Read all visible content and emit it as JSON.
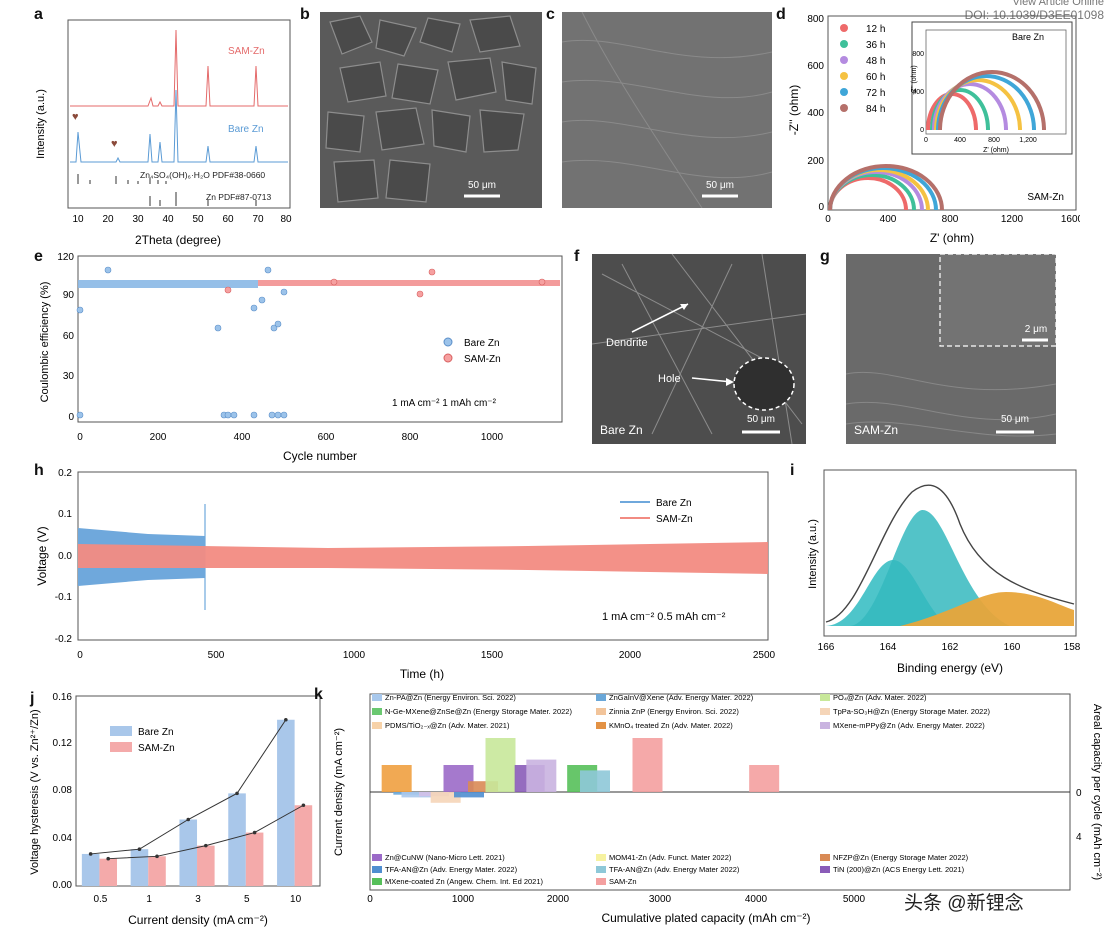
{
  "header": {
    "line1": "View Article Online",
    "line2": "DOI: 10.1039/D3EE01098"
  },
  "watermark": "头条 @新锂念",
  "panels": {
    "a": {
      "label": "a",
      "ylabel": "Intensity (a.u.)",
      "xlabel": "2Theta (degree)",
      "xticks": [
        "10",
        "20",
        "30",
        "40",
        "50",
        "60",
        "70",
        "80"
      ],
      "legend_sam": "SAM-Zn",
      "legend_bare": "Bare Zn",
      "ref1": "Zn₄SO₄(OH)₆·H₂O PDF#38-0660",
      "ref2": "Zn PDF#87-0713",
      "colors": {
        "sam": "#e46a6a",
        "bare": "#5b9bd5",
        "marker": "#8b4a3a"
      }
    },
    "b": {
      "label": "b",
      "scale": "50 μm"
    },
    "c": {
      "label": "c",
      "scale": "50 μm"
    },
    "d": {
      "label": "d",
      "ylabel": "-Z'' (ohm)",
      "xlabel": "Z' (ohm)",
      "xticks": [
        "0",
        "400",
        "800",
        "1200",
        "1600"
      ],
      "yticks": [
        "0",
        "200",
        "400",
        "600",
        "800"
      ],
      "legend": [
        "12 h",
        "36 h",
        "48 h",
        "60 h",
        "72 h",
        "84 h"
      ],
      "colors": [
        "#ee6a6a",
        "#3fc09a",
        "#b48be0",
        "#f5c242",
        "#3fa6d8",
        "#b5706a"
      ],
      "inset_label": "Bare Zn",
      "inset_xlabel": "Z' (ohm)",
      "inset_ylabel": "-Z'' (ohm)",
      "inset_xticks": [
        "0",
        "400",
        "800",
        "1,200"
      ],
      "inset_yticks": [
        "0",
        "400",
        "800"
      ],
      "main_label": "SAM-Zn"
    },
    "e": {
      "label": "e",
      "ylabel": "Coulombic efficiency (%)",
      "xlabel": "Cycle number",
      "xticks": [
        "0",
        "200",
        "400",
        "600",
        "800",
        "1000"
      ],
      "yticks": [
        "0",
        "30",
        "60",
        "90",
        "120"
      ],
      "legend": [
        "Bare Zn",
        "SAM-Zn"
      ],
      "colors": [
        "#7fb2e0",
        "#f08080"
      ],
      "condition": "1 mA cm⁻² 1 mAh cm⁻²"
    },
    "f": {
      "label": "f",
      "dendrite": "Dendrite",
      "hole": "Hole",
      "scale": "50 μm",
      "name": "Bare Zn"
    },
    "g": {
      "label": "g",
      "inset_scale": "2 μm",
      "scale": "50 μm",
      "name": "SAM-Zn"
    },
    "h": {
      "label": "h",
      "ylabel": "Voltage (V)",
      "xlabel": "Time (h)",
      "xticks": [
        "0",
        "500",
        "1000",
        "1500",
        "2000",
        "2500"
      ],
      "yticks": [
        "-0.2",
        "-0.1",
        "0.0",
        "0.1",
        "0.2"
      ],
      "legend": [
        "Bare Zn",
        "SAM-Zn"
      ],
      "colors": [
        "#6fa8dc",
        "#f28b82"
      ],
      "condition": "1 mA cm⁻² 0.5 mAh cm⁻²"
    },
    "i": {
      "label": "i",
      "ylabel": "Intensity (a.u.)",
      "xlabel": "Binding energy (eV)",
      "xticks": [
        "166",
        "164",
        "162",
        "160",
        "158"
      ],
      "colors": {
        "peak1": "#3bbfc4",
        "peak2": "#35b8be",
        "peak3": "#e8a53a",
        "envelope": "#444444"
      }
    },
    "j": {
      "label": "j",
      "ylabel": "Voltage hysteresis (V vs. Zn²⁺/Zn)",
      "xlabel": "Current density (mA cm⁻²)",
      "legend": [
        "Bare Zn",
        "SAM-Zn"
      ],
      "colors": [
        "#a9c7ea",
        "#f4aaaa"
      ],
      "yticks": [
        "0.00",
        "0.04",
        "0.08",
        "0.12",
        "0.16"
      ]
    },
    "k": {
      "label": "k",
      "ylabel": "Current density (mA cm⁻²)",
      "ylabel_right": "Areal capacity per cycle (mAh cm⁻²)",
      "xlabel": "Cumulative plated capacity (mAh cm⁻²)",
      "xticks": [
        "0",
        "1000",
        "2000",
        "3000",
        "4000",
        "5000"
      ],
      "right_ticks": [
        "0",
        "4"
      ],
      "legend_top": [
        {
          "text": "Zn-PA@Zn (Energy Environ. Sci. 2022)",
          "color": "#a8c8ec"
        },
        {
          "text": "ZnGaInV@Xene (Adv. Energy Mater. 2022)",
          "color": "#6aa7d8"
        },
        {
          "text": "PO₄@Zn (Adv. Mater. 2022)",
          "color": "#c8e89a"
        },
        {
          "text": "N-Ge-MXene@ZnSe@Zn (Energy Storage Mater. 2022)",
          "color": "#6ac870"
        },
        {
          "text": "Zinnia ZnP (Energy Environ. Sci. 2022)",
          "color": "#f2c49a"
        },
        {
          "text": "TpPa-SO₃H@Zn (Energy Storage Mater. 2022)",
          "color": "#f5d5b8"
        },
        {
          "text": "PDMS/TiO₂₋ₓ@Zn (Adv. Mater. 2021)",
          "color": "#f7d2a8"
        },
        {
          "text": "KMnO₄ treated Zn (Adv. Mater. 2022)",
          "color": "#e39245"
        },
        {
          "text": "MXene-mPPy@Zn (Adv. Energy Mater. 2022)",
          "color": "#c9b3e0"
        }
      ],
      "legend_bottom": [
        {
          "text": "Zn@CuNW (Nano-Micro Lett. 2021)",
          "color": "#9b6ac8"
        },
        {
          "text": "MOM41-Zn (Adv. Funct. Mater 2022)",
          "color": "#f6f2a0"
        },
        {
          "text": "NFZP@Zn (Energy Storage Mater 2022)",
          "color": "#d98a55"
        },
        {
          "text": "TFA-AN@Zn (Adv. Energy Mater. 2022)",
          "color": "#4f8ed0"
        },
        {
          "text": "TFA-AN@Zn (Adv. Energy Mater 2022)",
          "color": "#8ec8d8"
        },
        {
          "text": "TiN (200)@Zn (ACS Energy Lett. 2021)",
          "color": "#8a5cb8"
        },
        {
          "text": "MXene-coated Zn (Angew. Chem. Int. Ed 2021)",
          "color": "#56c05a"
        },
        {
          "text": "SAM-Zn",
          "color": "#f4a0a0"
        }
      ]
    }
  },
  "chart_data": [
    {
      "type": "bar",
      "panel": "j",
      "categories": [
        "0.5",
        "1",
        "3",
        "5",
        "10"
      ],
      "series": [
        {
          "name": "Bare Zn",
          "values": [
            0.027,
            0.031,
            0.056,
            0.078,
            0.14
          ]
        },
        {
          "name": "SAM-Zn",
          "values": [
            0.023,
            0.025,
            0.034,
            0.045,
            0.068
          ]
        }
      ],
      "xlabel": "Current density (mA cm⁻²)",
      "ylabel": "Voltage hysteresis (V vs. Zn²⁺/Zn)",
      "ylim": [
        0,
        0.16
      ]
    },
    {
      "type": "bar",
      "panel": "k",
      "xlabel": "Cumulative plated capacity (mAh cm⁻²)",
      "ylabel": "Current density (mA cm⁻²)",
      "xlim": [
        0,
        6000
      ],
      "bars": [
        {
          "x": 100,
          "value": 5,
          "color": "#f0a040"
        },
        {
          "x": 200,
          "value": -0.5,
          "color": "#6aa7d8"
        },
        {
          "x": 270,
          "value": -1,
          "color": "#a8c8ec"
        },
        {
          "x": 420,
          "value": -0.8,
          "color": "#d3c0e8"
        },
        {
          "x": 520,
          "value": -2,
          "color": "#f5d5b8"
        },
        {
          "x": 630,
          "value": 5,
          "color": "#9b6ac8"
        },
        {
          "x": 720,
          "value": -1,
          "color": "#4f8ed0"
        },
        {
          "x": 840,
          "value": 2,
          "color": "#d98a55"
        },
        {
          "x": 990,
          "value": 10,
          "color": "#c8e89a"
        },
        {
          "x": 1240,
          "value": 5,
          "color": "#8a5cb8"
        },
        {
          "x": 1340,
          "value": 6,
          "color": "#c9b3e0"
        },
        {
          "x": 1690,
          "value": 5,
          "color": "#56c05a"
        },
        {
          "x": 1800,
          "value": 4,
          "color": "#8ec8d8"
        },
        {
          "x": 2250,
          "value": 10,
          "color": "#f4a0a0"
        },
        {
          "x": 3250,
          "value": 5,
          "color": "#f4a0a0"
        }
      ]
    },
    {
      "type": "line",
      "panel": "d",
      "xlabel": "Z' (ohm)",
      "ylabel": "-Z'' (ohm)",
      "xlim": [
        0,
        1600
      ],
      "ylim": [
        0,
        800
      ],
      "series": [
        {
          "name": "12 h",
          "x0": 10,
          "x1": 500
        },
        {
          "name": "36 h",
          "x0": 10,
          "x1": 530
        },
        {
          "name": "48 h",
          "x0": 10,
          "x1": 560
        },
        {
          "name": "60 h",
          "x0": 10,
          "x1": 585
        },
        {
          "name": "72 h",
          "x0": 10,
          "x1": 610
        },
        {
          "name": "84 h",
          "x0": 10,
          "x1": 630
        }
      ]
    },
    {
      "type": "scatter",
      "panel": "e",
      "xlabel": "Cycle number",
      "ylabel": "Coulombic efficiency (%)",
      "xlim": [
        0,
        1150
      ],
      "ylim": [
        0,
        120
      ],
      "series": [
        {
          "name": "Bare Zn",
          "x": [
            5,
            100,
            340,
            355,
            380,
            420,
            440,
            455,
            470,
            480,
            495
          ],
          "y": [
            99,
            110,
            65,
            0,
            94,
            83,
            0,
            98,
            100,
            68,
            0
          ]
        },
        {
          "name": "SAM-Zn",
          "x": [
            380,
            610,
            820,
            850,
            1100
          ],
          "y": [
            96,
            100,
            90,
            107,
            99
          ]
        }
      ]
    }
  ]
}
